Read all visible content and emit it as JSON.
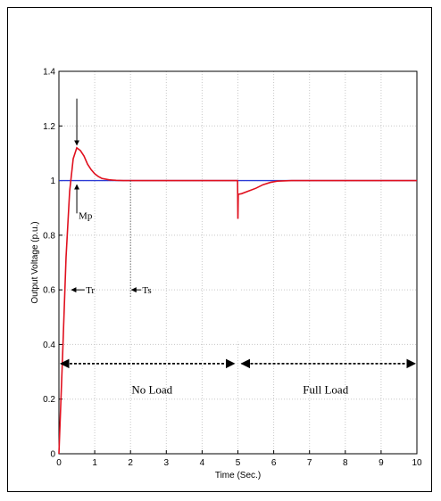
{
  "chart_data": {
    "type": "line",
    "title": "",
    "xlabel": "Time (Sec.)",
    "ylabel": "Output Voltage (p.u.)",
    "xlim": [
      0,
      10
    ],
    "ylim": [
      0,
      1.4
    ],
    "x_ticks": [
      "0",
      "1",
      "2",
      "3",
      "4",
      "5",
      "6",
      "7",
      "8",
      "9",
      "10"
    ],
    "y_ticks": [
      "0",
      "0.2",
      "0.4",
      "0.6",
      "0.8",
      "1",
      "1.2",
      "1.4"
    ],
    "grid": true,
    "series": [
      {
        "color": "#2b3bd6",
        "x": [
          0,
          0.5,
          5,
          5.5,
          6,
          10
        ],
        "y": [
          1,
          1,
          1,
          1,
          1,
          1
        ]
      },
      {
        "color": "#e0101e",
        "x": [
          0,
          0.1,
          0.2,
          0.3,
          0.4,
          0.5,
          0.6,
          0.7,
          0.8,
          0.9,
          1.0,
          1.1,
          1.2,
          1.4,
          1.6,
          1.8,
          2.0,
          3.0,
          4.0,
          4.99,
          5.0,
          5.01,
          5.1,
          5.3,
          5.5,
          5.7,
          5.9,
          6.1,
          6.5,
          7,
          8,
          9,
          10
        ],
        "y": [
          0,
          0.35,
          0.72,
          0.96,
          1.08,
          1.12,
          1.11,
          1.09,
          1.06,
          1.04,
          1.025,
          1.015,
          1.008,
          1.003,
          1.001,
          1.0,
          1.0,
          1.0,
          1.0,
          1.0,
          0.85,
          0.95,
          0.952,
          0.962,
          0.972,
          0.985,
          0.993,
          0.998,
          1.0,
          1.0,
          1.0,
          1.0,
          1.0
        ]
      }
    ],
    "annotations": [
      {
        "text": "Mp",
        "x": 0.5,
        "y": 0.86
      },
      {
        "text": "Tr",
        "x": 0.5,
        "y": 0.6
      },
      {
        "text": "Ts",
        "x": 2.0,
        "y": 0.6
      },
      {
        "text": "No Load",
        "x": 2.6,
        "y": 0.22
      },
      {
        "text": "Full Load",
        "x": 7.45,
        "y": 0.22
      }
    ],
    "reference_lines": {
      "settling_time_x": 2.0,
      "load_step_x": 5.0
    },
    "load_arrow_y": 0.33
  }
}
